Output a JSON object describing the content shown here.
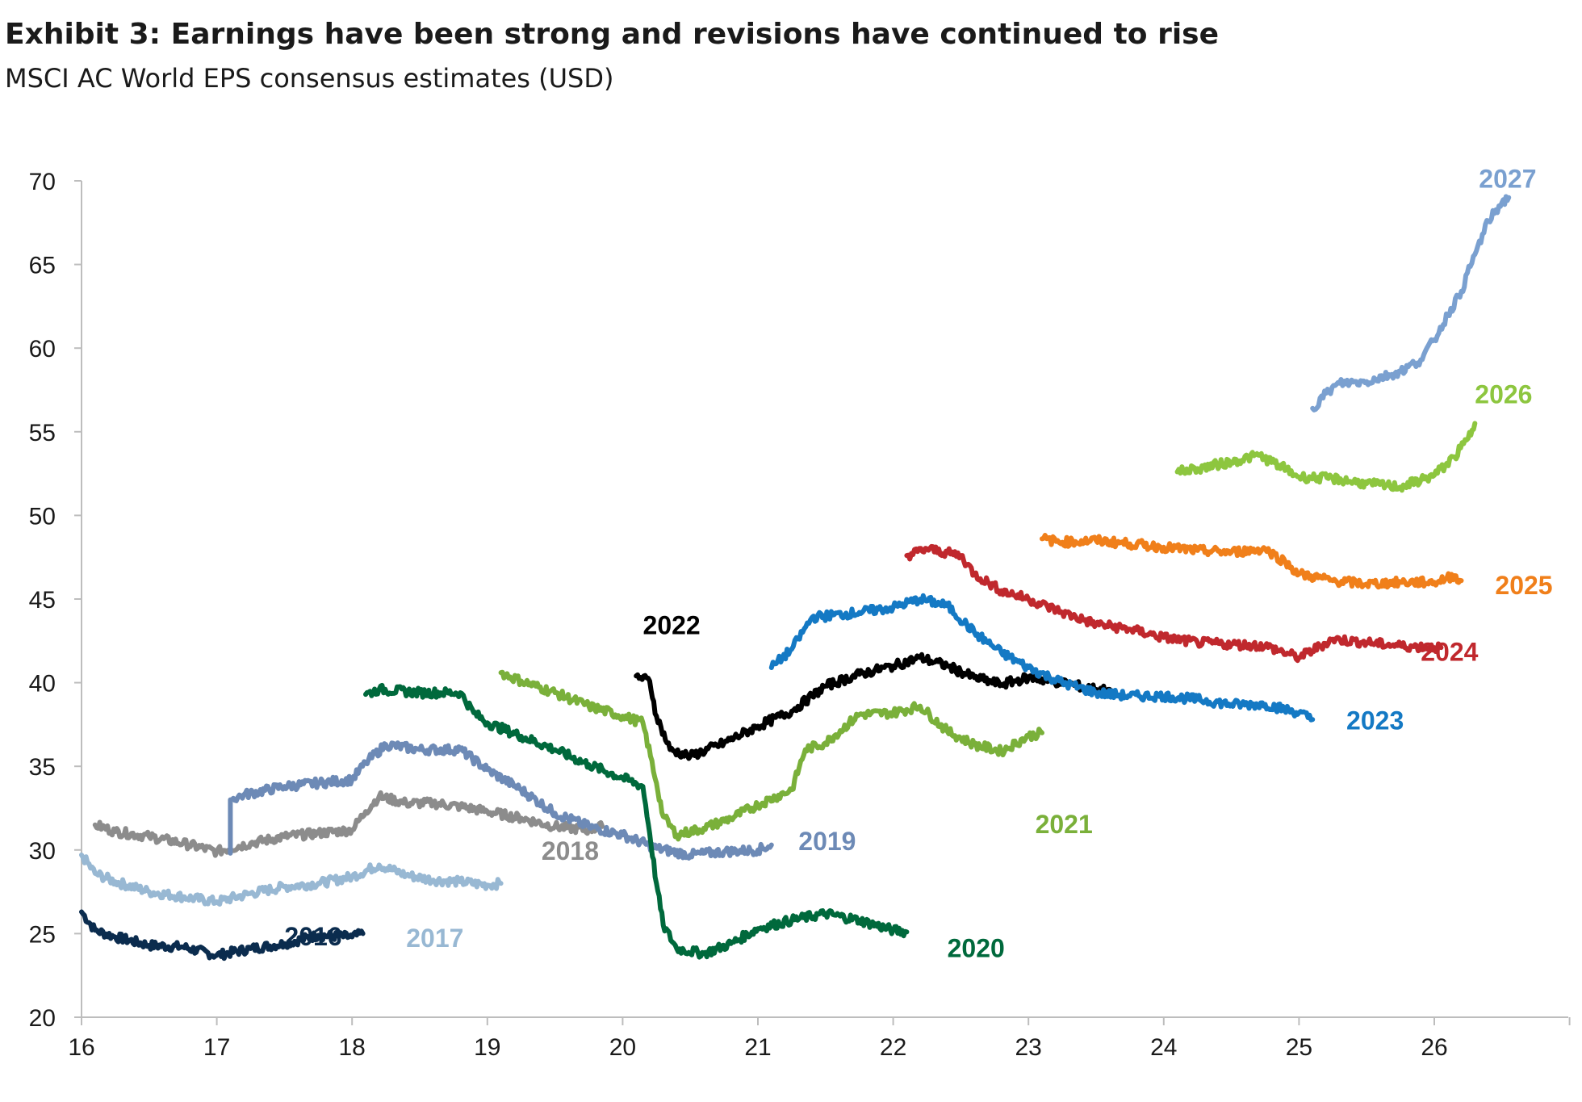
{
  "title": "Exhibit 3: Earnings have been strong and revisions have continued to rise",
  "subtitle": "MSCI AC World EPS consensus estimates (USD)",
  "chart_data": {
    "type": "line",
    "xlim": [
      16,
      27
    ],
    "ylim": [
      20,
      70
    ],
    "x_ticks": [
      "16",
      "17",
      "18",
      "19",
      "20",
      "21",
      "22",
      "23",
      "24",
      "25",
      "26"
    ],
    "y_ticks": [
      "20",
      "25",
      "30",
      "35",
      "40",
      "45",
      "50",
      "55",
      "60",
      "65",
      "70"
    ],
    "grid": false,
    "series": [
      {
        "name": "2016",
        "color": "#0b2c4e",
        "label_at": [
          17.5,
          24.3
        ],
        "points": [
          [
            16,
            26.3
          ],
          [
            16.1,
            25.2
          ],
          [
            16.25,
            24.8
          ],
          [
            16.5,
            24.3
          ],
          [
            16.75,
            24.2
          ],
          [
            17.0,
            23.7
          ],
          [
            17.25,
            24.1
          ],
          [
            17.5,
            24.4
          ],
          [
            17.75,
            24.9
          ],
          [
            18.0,
            24.8
          ],
          [
            18.08,
            25.0
          ]
        ]
      },
      {
        "name": "2017",
        "color": "#98b8d3",
        "label_at": [
          18.4,
          24.2
        ],
        "points": [
          [
            16,
            29.7
          ],
          [
            16.1,
            28.6
          ],
          [
            16.25,
            28.1
          ],
          [
            16.5,
            27.5
          ],
          [
            16.75,
            27.2
          ],
          [
            17.0,
            26.9
          ],
          [
            17.25,
            27.4
          ],
          [
            17.5,
            27.8
          ],
          [
            17.75,
            28.0
          ],
          [
            18.0,
            28.4
          ],
          [
            18.2,
            29.1
          ],
          [
            18.4,
            28.5
          ],
          [
            18.6,
            28.2
          ],
          [
            18.8,
            28.1
          ],
          [
            19.0,
            27.9
          ],
          [
            19.1,
            28.0
          ]
        ]
      },
      {
        "name": "2018",
        "color": "#8c8c8c",
        "label_at": [
          19.4,
          29.4
        ],
        "points": [
          [
            16.1,
            31.5
          ],
          [
            16.25,
            31.1
          ],
          [
            16.5,
            30.8
          ],
          [
            16.75,
            30.4
          ],
          [
            17.0,
            29.9
          ],
          [
            17.25,
            30.4
          ],
          [
            17.5,
            30.8
          ],
          [
            17.75,
            31.0
          ],
          [
            18.0,
            31.2
          ],
          [
            18.1,
            32.3
          ],
          [
            18.2,
            33.2
          ],
          [
            18.4,
            32.8
          ],
          [
            18.6,
            32.8
          ],
          [
            18.8,
            32.6
          ],
          [
            19.0,
            32.3
          ],
          [
            19.25,
            31.9
          ],
          [
            19.5,
            31.4
          ],
          [
            19.75,
            31.2
          ],
          [
            19.85,
            31.4
          ]
        ]
      },
      {
        "name": "2019",
        "color": "#6d8ab6",
        "label_at": [
          21.3,
          30.0
        ],
        "points": [
          [
            17.1,
            29.8
          ],
          [
            17.1,
            33.0
          ],
          [
            17.2,
            33.3
          ],
          [
            17.5,
            33.8
          ],
          [
            17.75,
            34.0
          ],
          [
            18.0,
            34.2
          ],
          [
            18.1,
            35.2
          ],
          [
            18.25,
            36.3
          ],
          [
            18.5,
            36.0
          ],
          [
            18.8,
            36.0
          ],
          [
            19.0,
            34.8
          ],
          [
            19.25,
            33.6
          ],
          [
            19.5,
            32.2
          ],
          [
            19.75,
            31.4
          ],
          [
            20.0,
            30.9
          ],
          [
            20.25,
            30.1
          ],
          [
            20.5,
            29.7
          ],
          [
            20.75,
            29.9
          ],
          [
            21.0,
            30.0
          ],
          [
            21.1,
            30.3
          ]
        ]
      },
      {
        "name": "2020",
        "color": "#00693c",
        "label_at": [
          22.4,
          23.6
        ],
        "points": [
          [
            18.1,
            39.3
          ],
          [
            18.2,
            39.6
          ],
          [
            18.5,
            39.4
          ],
          [
            18.8,
            39.4
          ],
          [
            18.9,
            38.2
          ],
          [
            19.0,
            37.6
          ],
          [
            19.25,
            36.8
          ],
          [
            19.5,
            36.0
          ],
          [
            19.75,
            35.1
          ],
          [
            20.0,
            34.3
          ],
          [
            20.15,
            33.8
          ],
          [
            20.2,
            31.0
          ],
          [
            20.25,
            28.0
          ],
          [
            20.3,
            25.5
          ],
          [
            20.4,
            24.1
          ],
          [
            20.6,
            23.8
          ],
          [
            20.8,
            24.4
          ],
          [
            21.0,
            25.3
          ],
          [
            21.25,
            25.8
          ],
          [
            21.5,
            26.2
          ],
          [
            21.75,
            25.8
          ],
          [
            22.0,
            25.2
          ],
          [
            22.1,
            25.1
          ]
        ]
      },
      {
        "name": "2021",
        "color": "#7ab03a",
        "label_at": [
          23.05,
          31.0
        ],
        "points": [
          [
            19.1,
            40.6
          ],
          [
            19.25,
            40.1
          ],
          [
            19.5,
            39.4
          ],
          [
            19.75,
            38.6
          ],
          [
            20.0,
            38.0
          ],
          [
            20.15,
            37.6
          ],
          [
            20.25,
            34.0
          ],
          [
            20.3,
            32.0
          ],
          [
            20.4,
            30.9
          ],
          [
            20.6,
            31.3
          ],
          [
            20.8,
            31.9
          ],
          [
            21.0,
            32.7
          ],
          [
            21.25,
            33.6
          ],
          [
            21.35,
            36.0
          ],
          [
            21.5,
            36.4
          ],
          [
            21.75,
            38.1
          ],
          [
            22.0,
            38.2
          ],
          [
            22.2,
            38.6
          ],
          [
            22.4,
            37.1
          ],
          [
            22.6,
            36.3
          ],
          [
            22.8,
            35.9
          ],
          [
            23.0,
            36.8
          ],
          [
            23.1,
            37.0
          ]
        ]
      },
      {
        "name": "2022",
        "color": "#000000",
        "label_at": [
          20.15,
          42.9
        ],
        "points": [
          [
            20.1,
            40.4
          ],
          [
            20.2,
            40.1
          ],
          [
            20.25,
            38.0
          ],
          [
            20.35,
            36.0
          ],
          [
            20.5,
            35.6
          ],
          [
            20.75,
            36.4
          ],
          [
            21.0,
            37.4
          ],
          [
            21.25,
            38.3
          ],
          [
            21.4,
            39.2
          ],
          [
            21.5,
            39.8
          ],
          [
            21.75,
            40.5
          ],
          [
            22.0,
            41.0
          ],
          [
            22.2,
            41.5
          ],
          [
            22.4,
            41.0
          ],
          [
            22.6,
            40.3
          ],
          [
            22.8,
            39.9
          ],
          [
            23.0,
            40.3
          ],
          [
            23.25,
            40.0
          ],
          [
            23.5,
            39.6
          ],
          [
            23.6,
            39.6
          ]
        ]
      },
      {
        "name": "2023",
        "color": "#1479c4",
        "label_at": [
          25.35,
          37.2
        ],
        "points": [
          [
            21.1,
            40.9
          ],
          [
            21.25,
            42.0
          ],
          [
            21.4,
            43.9
          ],
          [
            21.75,
            44.2
          ],
          [
            22.0,
            44.5
          ],
          [
            22.2,
            45.0
          ],
          [
            22.4,
            44.6
          ],
          [
            22.6,
            43.0
          ],
          [
            22.8,
            41.8
          ],
          [
            23.0,
            40.9
          ],
          [
            23.25,
            40.0
          ],
          [
            23.5,
            39.4
          ],
          [
            23.75,
            39.2
          ],
          [
            24.0,
            39.2
          ],
          [
            24.25,
            39.0
          ],
          [
            24.5,
            38.7
          ],
          [
            24.75,
            38.7
          ],
          [
            25.0,
            38.2
          ],
          [
            25.1,
            37.8
          ]
        ]
      },
      {
        "name": "2024",
        "color": "#c0282d",
        "label_at": [
          25.9,
          41.3
        ],
        "points": [
          [
            22.1,
            47.6
          ],
          [
            22.25,
            48.0
          ],
          [
            22.5,
            47.6
          ],
          [
            22.6,
            46.5
          ],
          [
            22.8,
            45.5
          ],
          [
            23.0,
            45.0
          ],
          [
            23.25,
            44.2
          ],
          [
            23.5,
            43.5
          ],
          [
            23.75,
            43.2
          ],
          [
            24.0,
            42.7
          ],
          [
            24.25,
            42.4
          ],
          [
            24.5,
            42.3
          ],
          [
            24.75,
            42.2
          ],
          [
            25.0,
            41.5
          ],
          [
            25.25,
            42.6
          ],
          [
            25.5,
            42.4
          ],
          [
            25.75,
            42.2
          ],
          [
            26.0,
            42.1
          ],
          [
            26.05,
            42.1
          ]
        ]
      },
      {
        "name": "2025",
        "color": "#f07f1a",
        "label_at": [
          26.45,
          45.3
        ],
        "points": [
          [
            23.1,
            48.6
          ],
          [
            23.25,
            48.4
          ],
          [
            23.5,
            48.5
          ],
          [
            23.75,
            48.3
          ],
          [
            24.0,
            48.1
          ],
          [
            24.25,
            47.9
          ],
          [
            24.5,
            47.8
          ],
          [
            24.75,
            48.0
          ],
          [
            24.9,
            47.2
          ],
          [
            25.0,
            46.5
          ],
          [
            25.25,
            46.1
          ],
          [
            25.5,
            45.9
          ],
          [
            25.75,
            46.0
          ],
          [
            26.0,
            46.0
          ],
          [
            26.15,
            46.4
          ],
          [
            26.2,
            46.1
          ]
        ]
      },
      {
        "name": "2026",
        "color": "#8dc63f",
        "label_at": [
          26.3,
          56.7
        ],
        "points": [
          [
            24.1,
            52.6
          ],
          [
            24.25,
            52.8
          ],
          [
            24.5,
            53.2
          ],
          [
            24.7,
            53.6
          ],
          [
            24.85,
            53.0
          ],
          [
            25.0,
            52.3
          ],
          [
            25.25,
            52.2
          ],
          [
            25.5,
            51.9
          ],
          [
            25.75,
            51.7
          ],
          [
            26.0,
            52.4
          ],
          [
            26.15,
            53.5
          ],
          [
            26.25,
            54.6
          ],
          [
            26.3,
            55.5
          ]
        ]
      },
      {
        "name": "2027",
        "color": "#7aa0d0",
        "label_at": [
          26.33,
          69.6
        ],
        "points": [
          [
            25.1,
            56.4
          ],
          [
            25.2,
            57.3
          ],
          [
            25.3,
            57.9
          ],
          [
            25.5,
            58.0
          ],
          [
            25.75,
            58.6
          ],
          [
            25.9,
            59.3
          ],
          [
            26.0,
            60.5
          ],
          [
            26.1,
            62.0
          ],
          [
            26.2,
            63.4
          ],
          [
            26.3,
            65.6
          ],
          [
            26.4,
            67.6
          ],
          [
            26.5,
            68.7
          ],
          [
            26.55,
            69.0
          ]
        ]
      }
    ]
  }
}
